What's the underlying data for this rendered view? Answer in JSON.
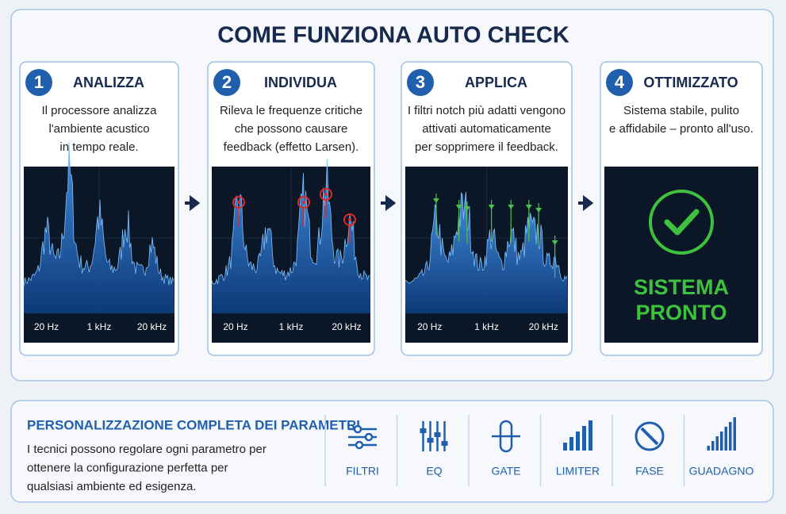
{
  "header": {
    "title": "COME FUNZIONA AUTO CHECK"
  },
  "steps": [
    {
      "number": 1,
      "title": "ANALIZZA",
      "lines": [
        "Il processore analizza",
        "l'ambiente acustico",
        "in tempo reale."
      ],
      "axis": [
        "20 Hz",
        "1 kHz",
        "20 kHz"
      ]
    },
    {
      "number": 2,
      "title": "INDIVIDUA",
      "lines": [
        "Rileva le frequenze critiche",
        "che possono causare",
        "feedback (effetto Larsen)."
      ],
      "axis": [
        "20 Hz",
        "1 kHz",
        "20 kHz"
      ]
    },
    {
      "number": 3,
      "title": "APPLICA",
      "lines": [
        "I filtri notch più adatti vengono",
        "attivati automaticamente",
        "per sopprimere il feedback."
      ],
      "axis": [
        "20 Hz",
        "1 kHz",
        "20 kHz"
      ]
    },
    {
      "number": 4,
      "title": "OTTIMIZZATO",
      "lines": [
        "Sistema stabile, pulito",
        "e affidabile – pronto all'uso."
      ],
      "status": [
        "SISTEMA",
        "PRONTO"
      ]
    }
  ],
  "customization": {
    "title": "PERSONALIZZAZIONE COMPLETA DEI PARAMETRI",
    "lines": [
      "I tecnici possono regolare ogni parametro per",
      "ottenere la configurazione perfetta per",
      "qualsiasi ambiente ed esigenza."
    ],
    "tools": [
      "FILTRI",
      "EQ",
      "GATE",
      "LIMITER",
      "FASE",
      "GUADAGNO"
    ]
  }
}
